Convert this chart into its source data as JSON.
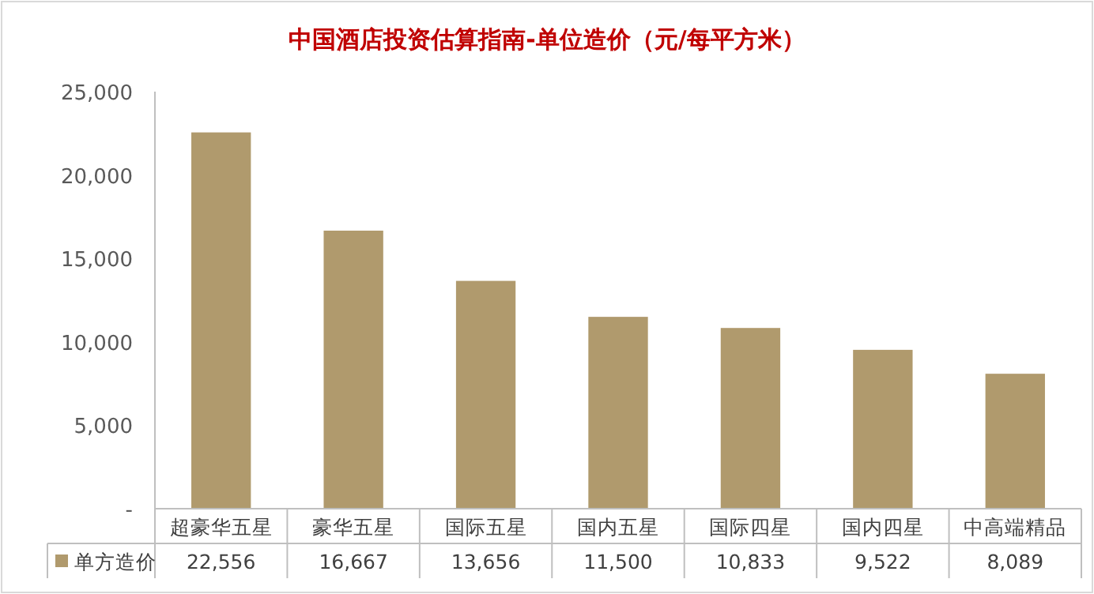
{
  "chart_data": {
    "type": "bar",
    "title": "中国酒店投资估算指南-单位造价（元/每平方米）",
    "categories": [
      "超豪华五星",
      "豪华五星",
      "国际五星",
      "国内五星",
      "国际四星",
      "国内四星",
      "中高端精品"
    ],
    "series": [
      {
        "name": "单方造价",
        "color": "#b09a6d",
        "values": [
          22556,
          16667,
          13656,
          11500,
          10833,
          9522,
          8089
        ],
        "value_labels": [
          "22,556",
          "16,667",
          "13,656",
          "11,500",
          "10,833",
          "9,522",
          "8,089"
        ]
      }
    ],
    "ylim": [
      0,
      25000
    ],
    "yticks": [
      {
        "value": 0,
        "label": "-"
      },
      {
        "value": 5000,
        "label": "5,000"
      },
      {
        "value": 10000,
        "label": "10,000"
      },
      {
        "value": 15000,
        "label": "15,000"
      },
      {
        "value": 20000,
        "label": "20,000"
      },
      {
        "value": 25000,
        "label": "25,000"
      }
    ],
    "legend": "bottom"
  }
}
